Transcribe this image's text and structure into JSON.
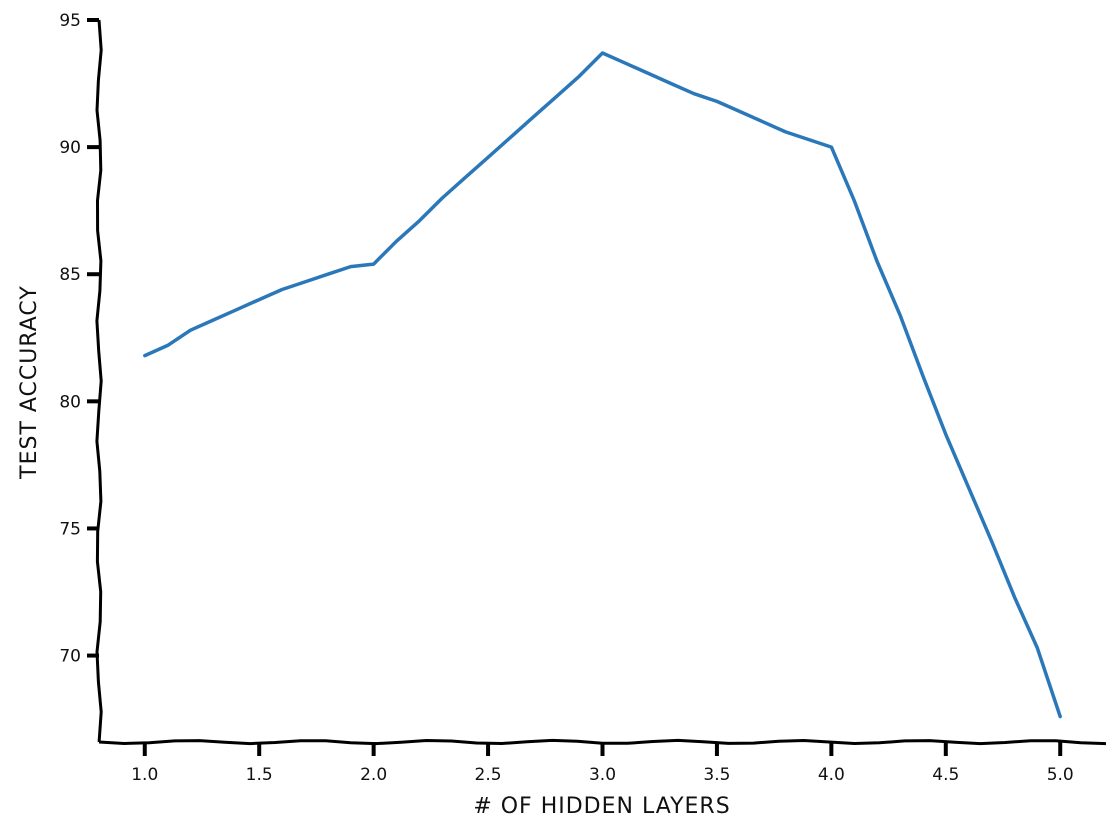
{
  "chart_data": {
    "type": "line",
    "title": "",
    "xlabel": "# OF HIDDEN LAYERS",
    "ylabel": "TEST ACCURACY",
    "xlim": [
      0.8,
      5.2
    ],
    "ylim": [
      66.6,
      95
    ],
    "x_ticks": [
      1.0,
      1.5,
      2.0,
      2.5,
      3.0,
      3.5,
      4.0,
      4.5,
      5.0
    ],
    "x_tick_labels": [
      "1.0",
      "1.5",
      "2.0",
      "2.5",
      "3.0",
      "3.5",
      "4.0",
      "4.5",
      "5.0"
    ],
    "y_ticks": [
      70,
      75,
      80,
      85,
      90,
      95
    ],
    "y_tick_labels": [
      "70",
      "75",
      "80",
      "85",
      "90",
      "95"
    ],
    "grid": false,
    "legend": "none",
    "line_color": "#2a78b9",
    "series": [
      {
        "x": [
          1.0,
          1.1,
          1.2,
          1.3,
          1.4,
          1.5,
          1.6,
          1.7,
          1.8,
          1.9,
          2.0,
          2.1,
          2.2,
          2.3,
          2.4,
          2.5,
          2.6,
          2.7,
          2.8,
          2.9,
          3.0,
          3.1,
          3.2,
          3.3,
          3.4,
          3.5,
          3.6,
          3.7,
          3.8,
          3.9,
          4.0,
          4.1,
          4.2,
          4.3,
          4.4,
          4.5,
          4.6,
          4.7,
          4.8,
          4.9,
          5.0
        ],
        "values": [
          81.8,
          82.2,
          82.8,
          83.2,
          83.6,
          84.0,
          84.4,
          84.7,
          85.0,
          85.3,
          85.4,
          86.3,
          87.1,
          88.0,
          88.8,
          89.6,
          90.4,
          91.2,
          92.0,
          92.8,
          93.7,
          93.3,
          92.9,
          92.5,
          92.1,
          91.8,
          91.4,
          91.0,
          90.6,
          90.3,
          90.0,
          87.9,
          85.5,
          83.4,
          81.0,
          78.7,
          76.6,
          74.5,
          72.3,
          70.3,
          67.6
        ]
      }
    ]
  }
}
